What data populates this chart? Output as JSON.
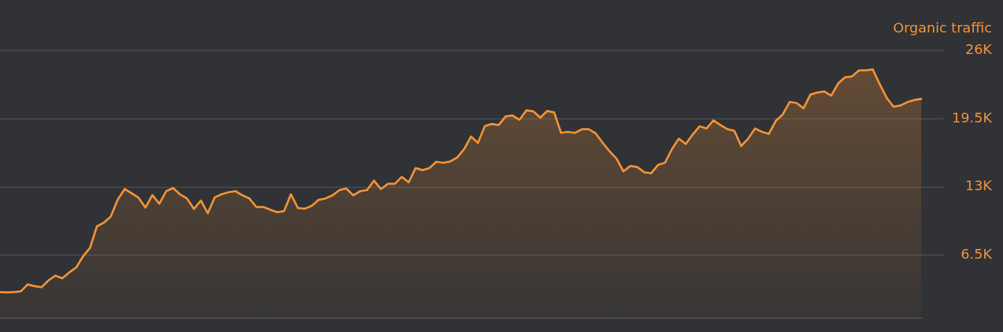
{
  "chart_data": {
    "type": "area",
    "ylabel": "Organic traffic",
    "color": "#f39336",
    "categories": [
      null,
      null,
      null,
      null,
      null,
      null,
      null,
      null,
      null,
      null,
      null,
      null,
      null,
      null,
      null,
      null,
      null,
      null,
      null,
      null,
      null,
      null,
      null,
      null,
      null,
      null,
      null,
      null,
      null,
      null,
      null,
      null,
      null,
      null,
      null,
      null,
      null,
      null,
      null,
      null,
      null,
      null,
      null,
      null,
      null,
      null,
      null,
      null,
      null,
      null,
      null,
      null,
      null,
      null,
      null,
      null,
      null,
      null,
      null,
      null,
      null,
      null,
      null,
      null,
      null,
      null,
      null,
      null,
      null,
      null,
      null,
      null,
      null,
      null,
      null,
      null,
      null,
      null,
      null,
      null,
      null,
      null,
      null,
      null,
      null,
      null,
      null,
      null,
      null,
      null,
      null,
      null,
      null,
      null,
      null,
      null,
      null,
      null,
      null,
      null,
      null,
      null,
      null,
      null,
      null,
      null,
      null,
      null,
      null,
      null,
      null,
      null,
      null,
      null,
      null,
      null,
      null,
      null,
      null,
      null,
      null,
      null,
      null,
      null,
      null,
      null,
      null,
      null,
      null,
      null,
      null,
      null,
      null,
      null
    ],
    "values": [
      2980,
      2950,
      2980,
      3050,
      3710,
      3550,
      3450,
      4100,
      4550,
      4300,
      4860,
      5320,
      6400,
      7200,
      9260,
      9600,
      10200,
      11800,
      12800,
      12400,
      11980,
      11030,
      12230,
      11400,
      12600,
      12900,
      12290,
      11900,
      10900,
      11700,
      10500,
      12000,
      12300,
      12500,
      12600,
      12200,
      11900,
      11100,
      11100,
      10830,
      10600,
      10700,
      12300,
      11000,
      10930,
      11200,
      11770,
      11900,
      12200,
      12700,
      12850,
      12200,
      12600,
      12710,
      13600,
      12800,
      13300,
      13300,
      13960,
      13440,
      14800,
      14600,
      14800,
      15400,
      15300,
      15430,
      15800,
      16600,
      17800,
      17200,
      18800,
      19000,
      18900,
      19720,
      19800,
      19400,
      20300,
      20200,
      19600,
      20240,
      20100,
      18150,
      18250,
      18150,
      18500,
      18500,
      18100,
      17210,
      16400,
      15700,
      14490,
      15000,
      14900,
      14400,
      14300,
      15100,
      15300,
      16600,
      17600,
      17100,
      18000,
      18780,
      18570,
      19340,
      18900,
      18500,
      18360,
      16900,
      17600,
      18570,
      18250,
      18060,
      19300,
      19900,
      21100,
      21000,
      20500,
      21800,
      22000,
      22100,
      21700,
      22860,
      23450,
      23530,
      24100,
      24100,
      24200,
      22800,
      21500,
      20640,
      20760,
      21080,
      21290,
      21390
    ],
    "ylim": [
      500,
      26000
    ],
    "yticks": [
      {
        "value": 6500,
        "label": "6.5K"
      },
      {
        "value": 13000,
        "label": "13K"
      },
      {
        "value": 19500,
        "label": "19.5K"
      },
      {
        "value": 26000,
        "label": "26K"
      }
    ],
    "grid": "y",
    "tick_labels": "y"
  }
}
